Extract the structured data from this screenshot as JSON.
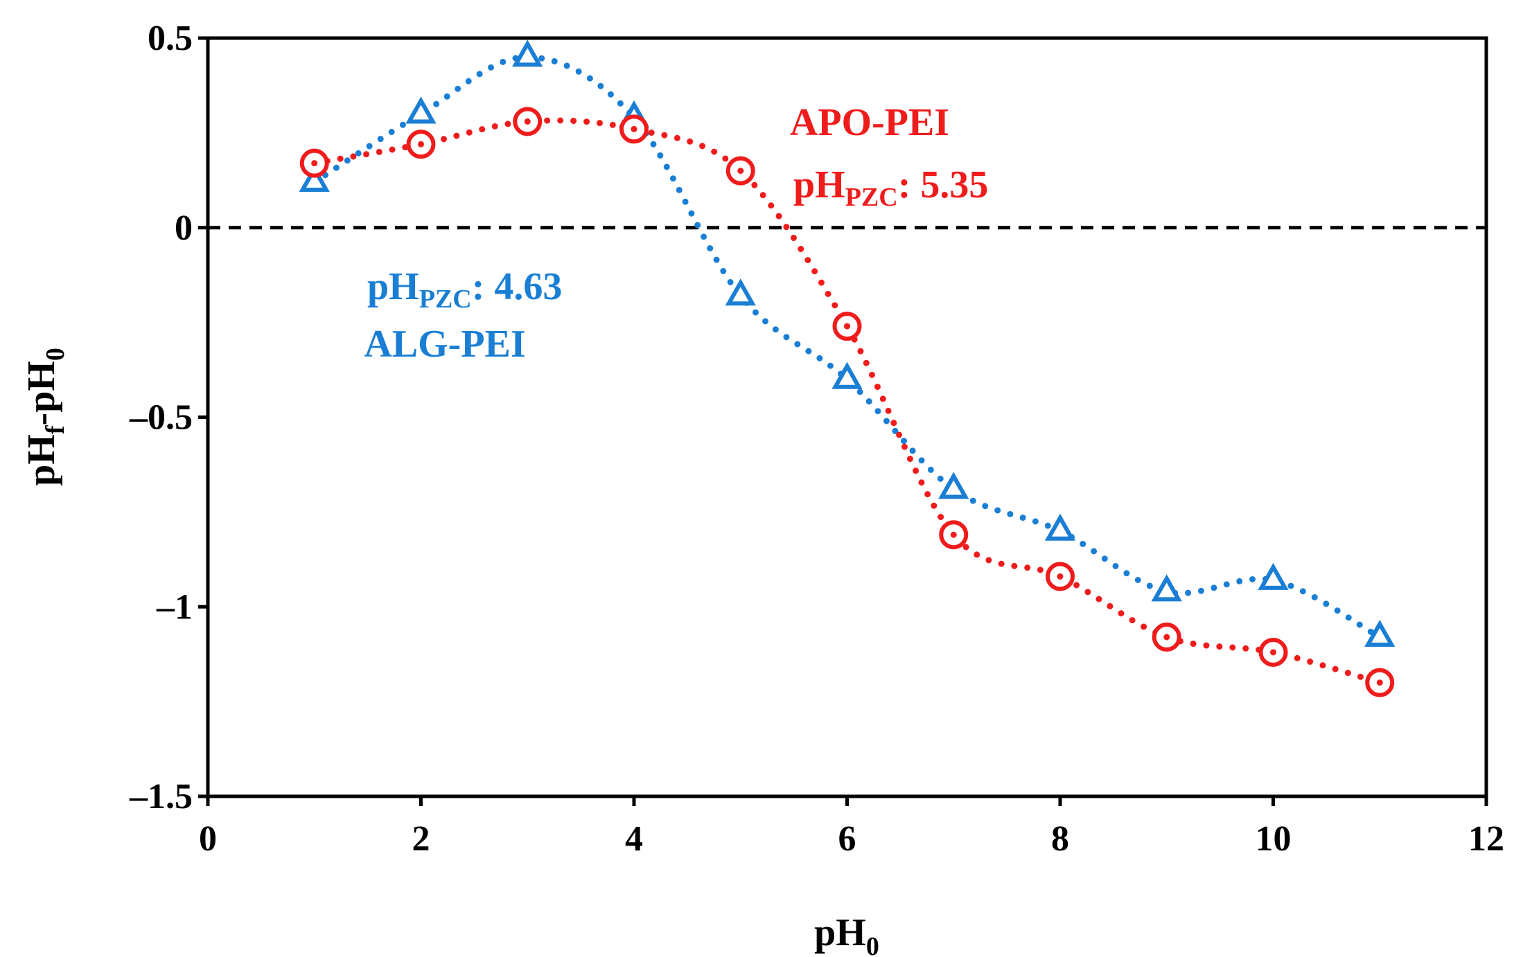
{
  "chart_data": {
    "type": "line",
    "title": "",
    "xlabel": {
      "main": "pH",
      "sub": "0"
    },
    "ylabel": {
      "main": "pH",
      "sub1": "f",
      "mid": "-pH",
      "sub2": "0"
    },
    "xlim": [
      0,
      12
    ],
    "ylim": [
      -1.5,
      0.5
    ],
    "x_ticks": [
      0,
      2,
      4,
      6,
      8,
      10,
      12
    ],
    "x_tick_labels": [
      "0",
      "2",
      "4",
      "6",
      "8",
      "10",
      "12"
    ],
    "y_ticks": [
      0.5,
      0,
      -0.5,
      -1,
      -1.5
    ],
    "y_tick_labels": [
      "0.5",
      "0",
      "–0.5",
      "–1",
      "–1.5"
    ],
    "grid": false,
    "reference_line": {
      "y": 0,
      "style": "dashed",
      "color": "#000000"
    },
    "x": [
      1,
      2,
      3,
      4,
      5,
      6,
      7,
      8,
      9,
      10,
      11
    ],
    "series": [
      {
        "name": "ALG-PEI",
        "marker": "triangle",
        "color": "#1a7fd4",
        "values": [
          0.12,
          0.3,
          0.45,
          0.29,
          -0.18,
          -0.4,
          -0.69,
          -0.8,
          -0.96,
          -0.93,
          -1.08
        ]
      },
      {
        "name": "APO-PEI",
        "marker": "circle-dot",
        "color": "#f01c1c",
        "values": [
          0.17,
          0.22,
          0.28,
          0.26,
          0.15,
          -0.26,
          -0.81,
          -0.92,
          -1.08,
          -1.12,
          -1.2
        ]
      }
    ],
    "annotations": [
      {
        "series": "APO-PEI",
        "name": "APO-PEI",
        "pzc_label": "pH",
        "pzc_sub": "PZC",
        "pzc_value": ": 5.35",
        "color": "#f01c1c"
      },
      {
        "series": "ALG-PEI",
        "name": "ALG-PEI",
        "pzc_label": "pH",
        "pzc_sub": "PZC",
        "pzc_value": ": 4.63",
        "color": "#1a7fd4"
      }
    ]
  }
}
